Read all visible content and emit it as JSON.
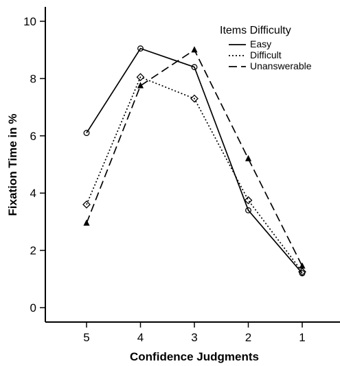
{
  "chart_data": {
    "type": "line",
    "xlabel": "Confidence Judgments",
    "ylabel": "Fixation Time in %",
    "categories": [
      "5",
      "4",
      "3",
      "2",
      "1"
    ],
    "ylim": [
      0,
      10
    ],
    "yticks": [
      0,
      2,
      4,
      6,
      8,
      10
    ],
    "legend_title": "Items Difficulty",
    "legend_position": "top-right",
    "grid": false,
    "series": [
      {
        "name": "Easy",
        "values": [
          6.1,
          9.05,
          8.4,
          3.4,
          1.2
        ],
        "line_style": "solid",
        "marker": "circle"
      },
      {
        "name": "Difficult",
        "values": [
          3.6,
          8.05,
          7.3,
          3.75,
          1.25
        ],
        "line_style": "dotted",
        "marker": "diamond"
      },
      {
        "name": "Unanswerable",
        "values": [
          2.95,
          7.75,
          9.0,
          5.2,
          1.45
        ],
        "line_style": "dashed",
        "marker": "triangle"
      }
    ]
  }
}
